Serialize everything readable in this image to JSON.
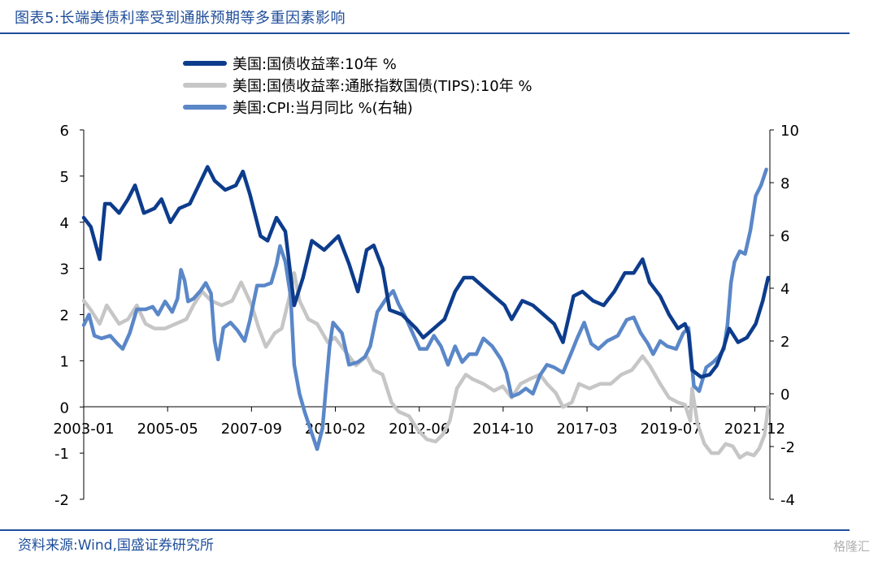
{
  "title": "图表5:长端美债利率受到通胀预期等多重因素影响",
  "source": "资料来源:Wind,国盛证券研究所",
  "watermark": "格隆汇",
  "chart_data": {
    "type": "line",
    "x_tick_labels": [
      "2003-01",
      "2005-05",
      "2007-09",
      "2010-02",
      "2012-06",
      "2014-10",
      "2017-03",
      "2019-07",
      "2021-12"
    ],
    "x_range": [
      2003.0,
      2022.4
    ],
    "left_axis": {
      "ticks": [
        "6",
        "5",
        "4",
        "3",
        "2",
        "1",
        "0",
        "-1",
        "-2"
      ],
      "range": [
        -2,
        6
      ]
    },
    "right_axis": {
      "ticks": [
        "10",
        "8",
        "6",
        "4",
        "2",
        "0",
        "-2",
        "-4"
      ],
      "range": [
        -4,
        10
      ]
    },
    "series": [
      {
        "name": "美国:国债收益率:10年 %",
        "axis": "left",
        "color": "#0d3c8c",
        "points": [
          [
            2003.0,
            4.1
          ],
          [
            2003.2,
            3.9
          ],
          [
            2003.45,
            3.2
          ],
          [
            2003.6,
            4.4
          ],
          [
            2003.75,
            4.4
          ],
          [
            2004.0,
            4.2
          ],
          [
            2004.25,
            4.5
          ],
          [
            2004.45,
            4.8
          ],
          [
            2004.7,
            4.2
          ],
          [
            2005.0,
            4.3
          ],
          [
            2005.2,
            4.5
          ],
          [
            2005.45,
            4.0
          ],
          [
            2005.7,
            4.3
          ],
          [
            2006.0,
            4.4
          ],
          [
            2006.25,
            4.8
          ],
          [
            2006.5,
            5.2
          ],
          [
            2006.7,
            4.9
          ],
          [
            2007.0,
            4.7
          ],
          [
            2007.3,
            4.8
          ],
          [
            2007.5,
            5.1
          ],
          [
            2007.7,
            4.6
          ],
          [
            2008.0,
            3.7
          ],
          [
            2008.2,
            3.6
          ],
          [
            2008.45,
            4.1
          ],
          [
            2008.7,
            3.8
          ],
          [
            2008.95,
            2.2
          ],
          [
            2009.2,
            2.8
          ],
          [
            2009.45,
            3.6
          ],
          [
            2009.8,
            3.4
          ],
          [
            2010.2,
            3.7
          ],
          [
            2010.5,
            3.1
          ],
          [
            2010.75,
            2.5
          ],
          [
            2011.0,
            3.4
          ],
          [
            2011.2,
            3.5
          ],
          [
            2011.45,
            3.0
          ],
          [
            2011.65,
            2.1
          ],
          [
            2012.0,
            2.0
          ],
          [
            2012.4,
            1.7
          ],
          [
            2012.6,
            1.5
          ],
          [
            2012.9,
            1.7
          ],
          [
            2013.2,
            1.9
          ],
          [
            2013.5,
            2.5
          ],
          [
            2013.75,
            2.8
          ],
          [
            2014.0,
            2.8
          ],
          [
            2014.3,
            2.6
          ],
          [
            2014.6,
            2.4
          ],
          [
            2014.9,
            2.2
          ],
          [
            2015.1,
            1.9
          ],
          [
            2015.4,
            2.3
          ],
          [
            2015.7,
            2.2
          ],
          [
            2016.0,
            2.0
          ],
          [
            2016.3,
            1.8
          ],
          [
            2016.55,
            1.4
          ],
          [
            2016.85,
            2.4
          ],
          [
            2017.1,
            2.5
          ],
          [
            2017.4,
            2.3
          ],
          [
            2017.7,
            2.2
          ],
          [
            2018.0,
            2.5
          ],
          [
            2018.3,
            2.9
          ],
          [
            2018.55,
            2.9
          ],
          [
            2018.8,
            3.2
          ],
          [
            2019.0,
            2.7
          ],
          [
            2019.3,
            2.4
          ],
          [
            2019.55,
            2.0
          ],
          [
            2019.8,
            1.7
          ],
          [
            2020.0,
            1.8
          ],
          [
            2020.1,
            1.6
          ],
          [
            2020.2,
            0.8
          ],
          [
            2020.45,
            0.65
          ],
          [
            2020.7,
            0.7
          ],
          [
            2020.9,
            0.9
          ],
          [
            2021.1,
            1.3
          ],
          [
            2021.25,
            1.7
          ],
          [
            2021.5,
            1.4
          ],
          [
            2021.75,
            1.5
          ],
          [
            2022.0,
            1.8
          ],
          [
            2022.2,
            2.3
          ],
          [
            2022.35,
            2.8
          ]
        ]
      },
      {
        "name": "美国:国债收益率:通胀指数国债(TIPS):10年 %",
        "axis": "left",
        "color": "#c6c6c6",
        "points": [
          [
            2003.0,
            2.3
          ],
          [
            2003.2,
            2.1
          ],
          [
            2003.45,
            1.8
          ],
          [
            2003.65,
            2.2
          ],
          [
            2004.0,
            1.8
          ],
          [
            2004.25,
            1.9
          ],
          [
            2004.5,
            2.2
          ],
          [
            2004.75,
            1.8
          ],
          [
            2005.0,
            1.7
          ],
          [
            2005.3,
            1.7
          ],
          [
            2005.6,
            1.8
          ],
          [
            2005.9,
            1.9
          ],
          [
            2006.1,
            2.2
          ],
          [
            2006.35,
            2.5
          ],
          [
            2006.6,
            2.3
          ],
          [
            2006.9,
            2.2
          ],
          [
            2007.2,
            2.3
          ],
          [
            2007.45,
            2.7
          ],
          [
            2007.75,
            2.2
          ],
          [
            2007.95,
            1.7
          ],
          [
            2008.15,
            1.3
          ],
          [
            2008.4,
            1.6
          ],
          [
            2008.6,
            1.7
          ],
          [
            2008.85,
            2.5
          ],
          [
            2008.95,
            2.9
          ],
          [
            2009.1,
            2.3
          ],
          [
            2009.35,
            1.9
          ],
          [
            2009.6,
            1.8
          ],
          [
            2009.9,
            1.4
          ],
          [
            2010.1,
            1.5
          ],
          [
            2010.4,
            1.2
          ],
          [
            2010.7,
            0.9
          ],
          [
            2011.0,
            1.1
          ],
          [
            2011.2,
            0.8
          ],
          [
            2011.45,
            0.7
          ],
          [
            2011.7,
            0.1
          ],
          [
            2011.9,
            -0.1
          ],
          [
            2012.2,
            -0.2
          ],
          [
            2012.45,
            -0.5
          ],
          [
            2012.7,
            -0.7
          ],
          [
            2012.95,
            -0.75
          ],
          [
            2013.15,
            -0.6
          ],
          [
            2013.35,
            -0.3
          ],
          [
            2013.55,
            0.4
          ],
          [
            2013.8,
            0.7
          ],
          [
            2014.0,
            0.6
          ],
          [
            2014.3,
            0.5
          ],
          [
            2014.6,
            0.35
          ],
          [
            2014.85,
            0.45
          ],
          [
            2015.1,
            0.2
          ],
          [
            2015.35,
            0.5
          ],
          [
            2015.6,
            0.6
          ],
          [
            2015.9,
            0.7
          ],
          [
            2016.1,
            0.5
          ],
          [
            2016.35,
            0.3
          ],
          [
            2016.55,
            0.0
          ],
          [
            2016.8,
            0.1
          ],
          [
            2017.0,
            0.5
          ],
          [
            2017.3,
            0.4
          ],
          [
            2017.6,
            0.5
          ],
          [
            2017.9,
            0.5
          ],
          [
            2018.2,
            0.7
          ],
          [
            2018.5,
            0.8
          ],
          [
            2018.8,
            1.1
          ],
          [
            2019.0,
            0.9
          ],
          [
            2019.3,
            0.5
          ],
          [
            2019.55,
            0.2
          ],
          [
            2019.8,
            0.1
          ],
          [
            2020.0,
            0.05
          ],
          [
            2020.15,
            -0.3
          ],
          [
            2020.2,
            0.4
          ],
          [
            2020.35,
            -0.35
          ],
          [
            2020.55,
            -0.8
          ],
          [
            2020.75,
            -1.0
          ],
          [
            2020.95,
            -1.0
          ],
          [
            2021.15,
            -0.8
          ],
          [
            2021.35,
            -0.85
          ],
          [
            2021.55,
            -1.1
          ],
          [
            2021.75,
            -1.0
          ],
          [
            2021.95,
            -1.05
          ],
          [
            2022.1,
            -0.9
          ],
          [
            2022.25,
            -0.6
          ],
          [
            2022.35,
            0.0
          ]
        ]
      },
      {
        "name": "美国:CPI:当月同比 %(右轴)",
        "axis": "right",
        "color": "#5a87c8",
        "points": [
          [
            2003.0,
            2.6
          ],
          [
            2003.15,
            3.0
          ],
          [
            2003.3,
            2.2
          ],
          [
            2003.5,
            2.1
          ],
          [
            2003.75,
            2.2
          ],
          [
            2003.95,
            1.9
          ],
          [
            2004.1,
            1.7
          ],
          [
            2004.3,
            2.3
          ],
          [
            2004.5,
            3.2
          ],
          [
            2004.75,
            3.2
          ],
          [
            2004.95,
            3.3
          ],
          [
            2005.1,
            3.0
          ],
          [
            2005.3,
            3.5
          ],
          [
            2005.5,
            3.1
          ],
          [
            2005.65,
            3.6
          ],
          [
            2005.75,
            4.7
          ],
          [
            2005.85,
            4.3
          ],
          [
            2005.95,
            3.5
          ],
          [
            2006.1,
            3.6
          ],
          [
            2006.3,
            3.9
          ],
          [
            2006.45,
            4.2
          ],
          [
            2006.6,
            3.8
          ],
          [
            2006.7,
            2.0
          ],
          [
            2006.8,
            1.3
          ],
          [
            2006.95,
            2.5
          ],
          [
            2007.15,
            2.7
          ],
          [
            2007.35,
            2.4
          ],
          [
            2007.55,
            2.0
          ],
          [
            2007.7,
            2.8
          ],
          [
            2007.9,
            4.1
          ],
          [
            2008.1,
            4.1
          ],
          [
            2008.3,
            4.2
          ],
          [
            2008.45,
            4.9
          ],
          [
            2008.55,
            5.6
          ],
          [
            2008.7,
            5.0
          ],
          [
            2008.85,
            3.7
          ],
          [
            2008.95,
            1.1
          ],
          [
            2009.1,
            0.0
          ],
          [
            2009.25,
            -0.7
          ],
          [
            2009.45,
            -1.5
          ],
          [
            2009.6,
            -2.1
          ],
          [
            2009.75,
            -1.3
          ],
          [
            2009.95,
            1.8
          ],
          [
            2010.05,
            2.7
          ],
          [
            2010.3,
            2.3
          ],
          [
            2010.5,
            1.1
          ],
          [
            2010.75,
            1.2
          ],
          [
            2010.95,
            1.4
          ],
          [
            2011.1,
            1.8
          ],
          [
            2011.3,
            3.1
          ],
          [
            2011.55,
            3.6
          ],
          [
            2011.75,
            3.9
          ],
          [
            2011.9,
            3.4
          ],
          [
            2012.1,
            2.9
          ],
          [
            2012.3,
            2.3
          ],
          [
            2012.5,
            1.7
          ],
          [
            2012.7,
            1.7
          ],
          [
            2012.9,
            2.2
          ],
          [
            2013.1,
            1.8
          ],
          [
            2013.3,
            1.1
          ],
          [
            2013.5,
            1.8
          ],
          [
            2013.7,
            1.2
          ],
          [
            2013.9,
            1.5
          ],
          [
            2014.1,
            1.5
          ],
          [
            2014.3,
            2.1
          ],
          [
            2014.55,
            1.8
          ],
          [
            2014.8,
            1.3
          ],
          [
            2014.95,
            0.8
          ],
          [
            2015.1,
            -0.1
          ],
          [
            2015.3,
            0.0
          ],
          [
            2015.5,
            0.2
          ],
          [
            2015.7,
            0.0
          ],
          [
            2015.9,
            0.7
          ],
          [
            2016.1,
            1.1
          ],
          [
            2016.3,
            1.0
          ],
          [
            2016.55,
            0.8
          ],
          [
            2016.8,
            1.6
          ],
          [
            2016.95,
            2.1
          ],
          [
            2017.15,
            2.7
          ],
          [
            2017.35,
            1.9
          ],
          [
            2017.55,
            1.7
          ],
          [
            2017.8,
            2.0
          ],
          [
            2017.95,
            2.1
          ],
          [
            2018.1,
            2.2
          ],
          [
            2018.35,
            2.8
          ],
          [
            2018.55,
            2.9
          ],
          [
            2018.75,
            2.3
          ],
          [
            2018.95,
            1.9
          ],
          [
            2019.1,
            1.5
          ],
          [
            2019.3,
            2.0
          ],
          [
            2019.5,
            1.8
          ],
          [
            2019.75,
            1.7
          ],
          [
            2019.95,
            2.3
          ],
          [
            2020.1,
            2.5
          ],
          [
            2020.25,
            0.3
          ],
          [
            2020.4,
            0.1
          ],
          [
            2020.6,
            1.0
          ],
          [
            2020.8,
            1.2
          ],
          [
            2020.95,
            1.4
          ],
          [
            2021.1,
            1.7
          ],
          [
            2021.2,
            2.6
          ],
          [
            2021.3,
            4.2
          ],
          [
            2021.4,
            5.0
          ],
          [
            2021.55,
            5.4
          ],
          [
            2021.7,
            5.3
          ],
          [
            2021.85,
            6.2
          ],
          [
            2022.0,
            7.5
          ],
          [
            2022.15,
            7.9
          ],
          [
            2022.3,
            8.5
          ]
        ]
      }
    ]
  }
}
